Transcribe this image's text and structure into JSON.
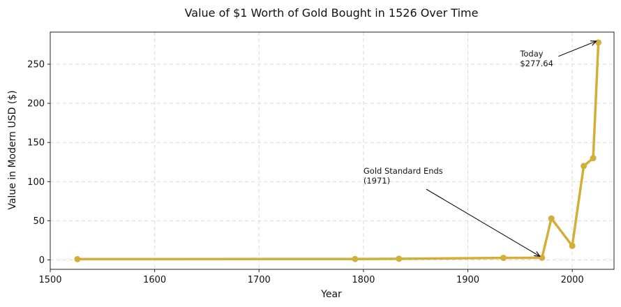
{
  "chart_data": {
    "type": "line",
    "title": "Value of $1 Worth of Gold Bought in 1526 Over Time",
    "xlabel": "Year",
    "ylabel": "Value in Modern USD ($)",
    "xlim": [
      1500,
      2040
    ],
    "ylim": [
      -12,
      291
    ],
    "xticks": [
      1500,
      1600,
      1700,
      1800,
      1900,
      2000
    ],
    "yticks": [
      0,
      50,
      100,
      150,
      200,
      250
    ],
    "grid": true,
    "series": [
      {
        "color": "#D4AF37",
        "x": [
          1526,
          1792,
          1834,
          1934,
          1971,
          1980,
          2000,
          2011,
          2020,
          2025
        ],
        "y": [
          1.0,
          1.2,
          1.5,
          2.6,
          2.8,
          53,
          18,
          120,
          130,
          277.64
        ]
      }
    ],
    "annotations": [
      {
        "lines": [
          "Gold Standard Ends",
          "(1971)"
        ],
        "point": [
          1971,
          2.8
        ],
        "text_at": [
          1800,
          110
        ]
      },
      {
        "lines": [
          "Today",
          "$277.64"
        ],
        "point": [
          2025,
          277.64
        ],
        "text_at": [
          1950,
          260
        ]
      }
    ]
  }
}
